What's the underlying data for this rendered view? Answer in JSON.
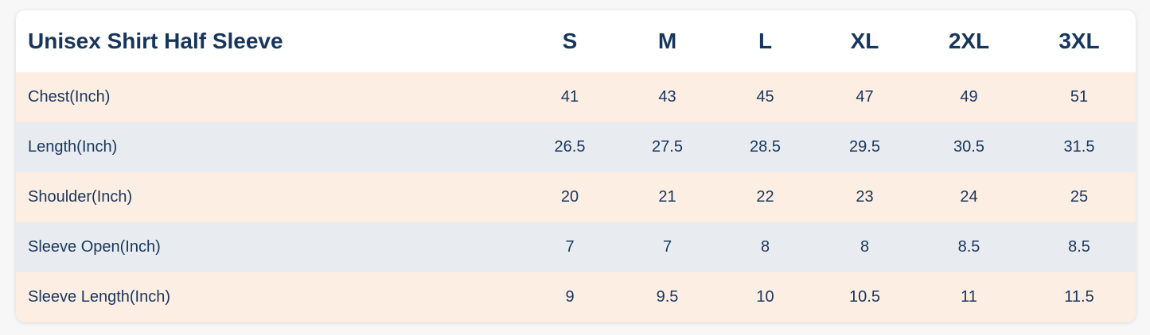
{
  "table": {
    "title": "Unisex Shirt Half Sleeve",
    "columns": [
      "S",
      "M",
      "L",
      "XL",
      "2XL",
      "3XL"
    ],
    "rows": [
      [
        "Chest(Inch)",
        41,
        43,
        45,
        47,
        49,
        51
      ],
      [
        "Length(Inch)",
        26.5,
        27.5,
        28.5,
        29.5,
        30.5,
        31.5
      ],
      [
        "Shoulder(Inch)",
        20,
        21,
        22,
        23,
        24,
        25
      ],
      [
        "Sleeve Open(Inch)",
        7,
        7,
        8,
        8,
        8.5,
        8.5
      ],
      [
        "Sleeve Length(Inch)",
        9,
        9.5,
        10,
        10.5,
        11,
        11.5
      ]
    ]
  }
}
